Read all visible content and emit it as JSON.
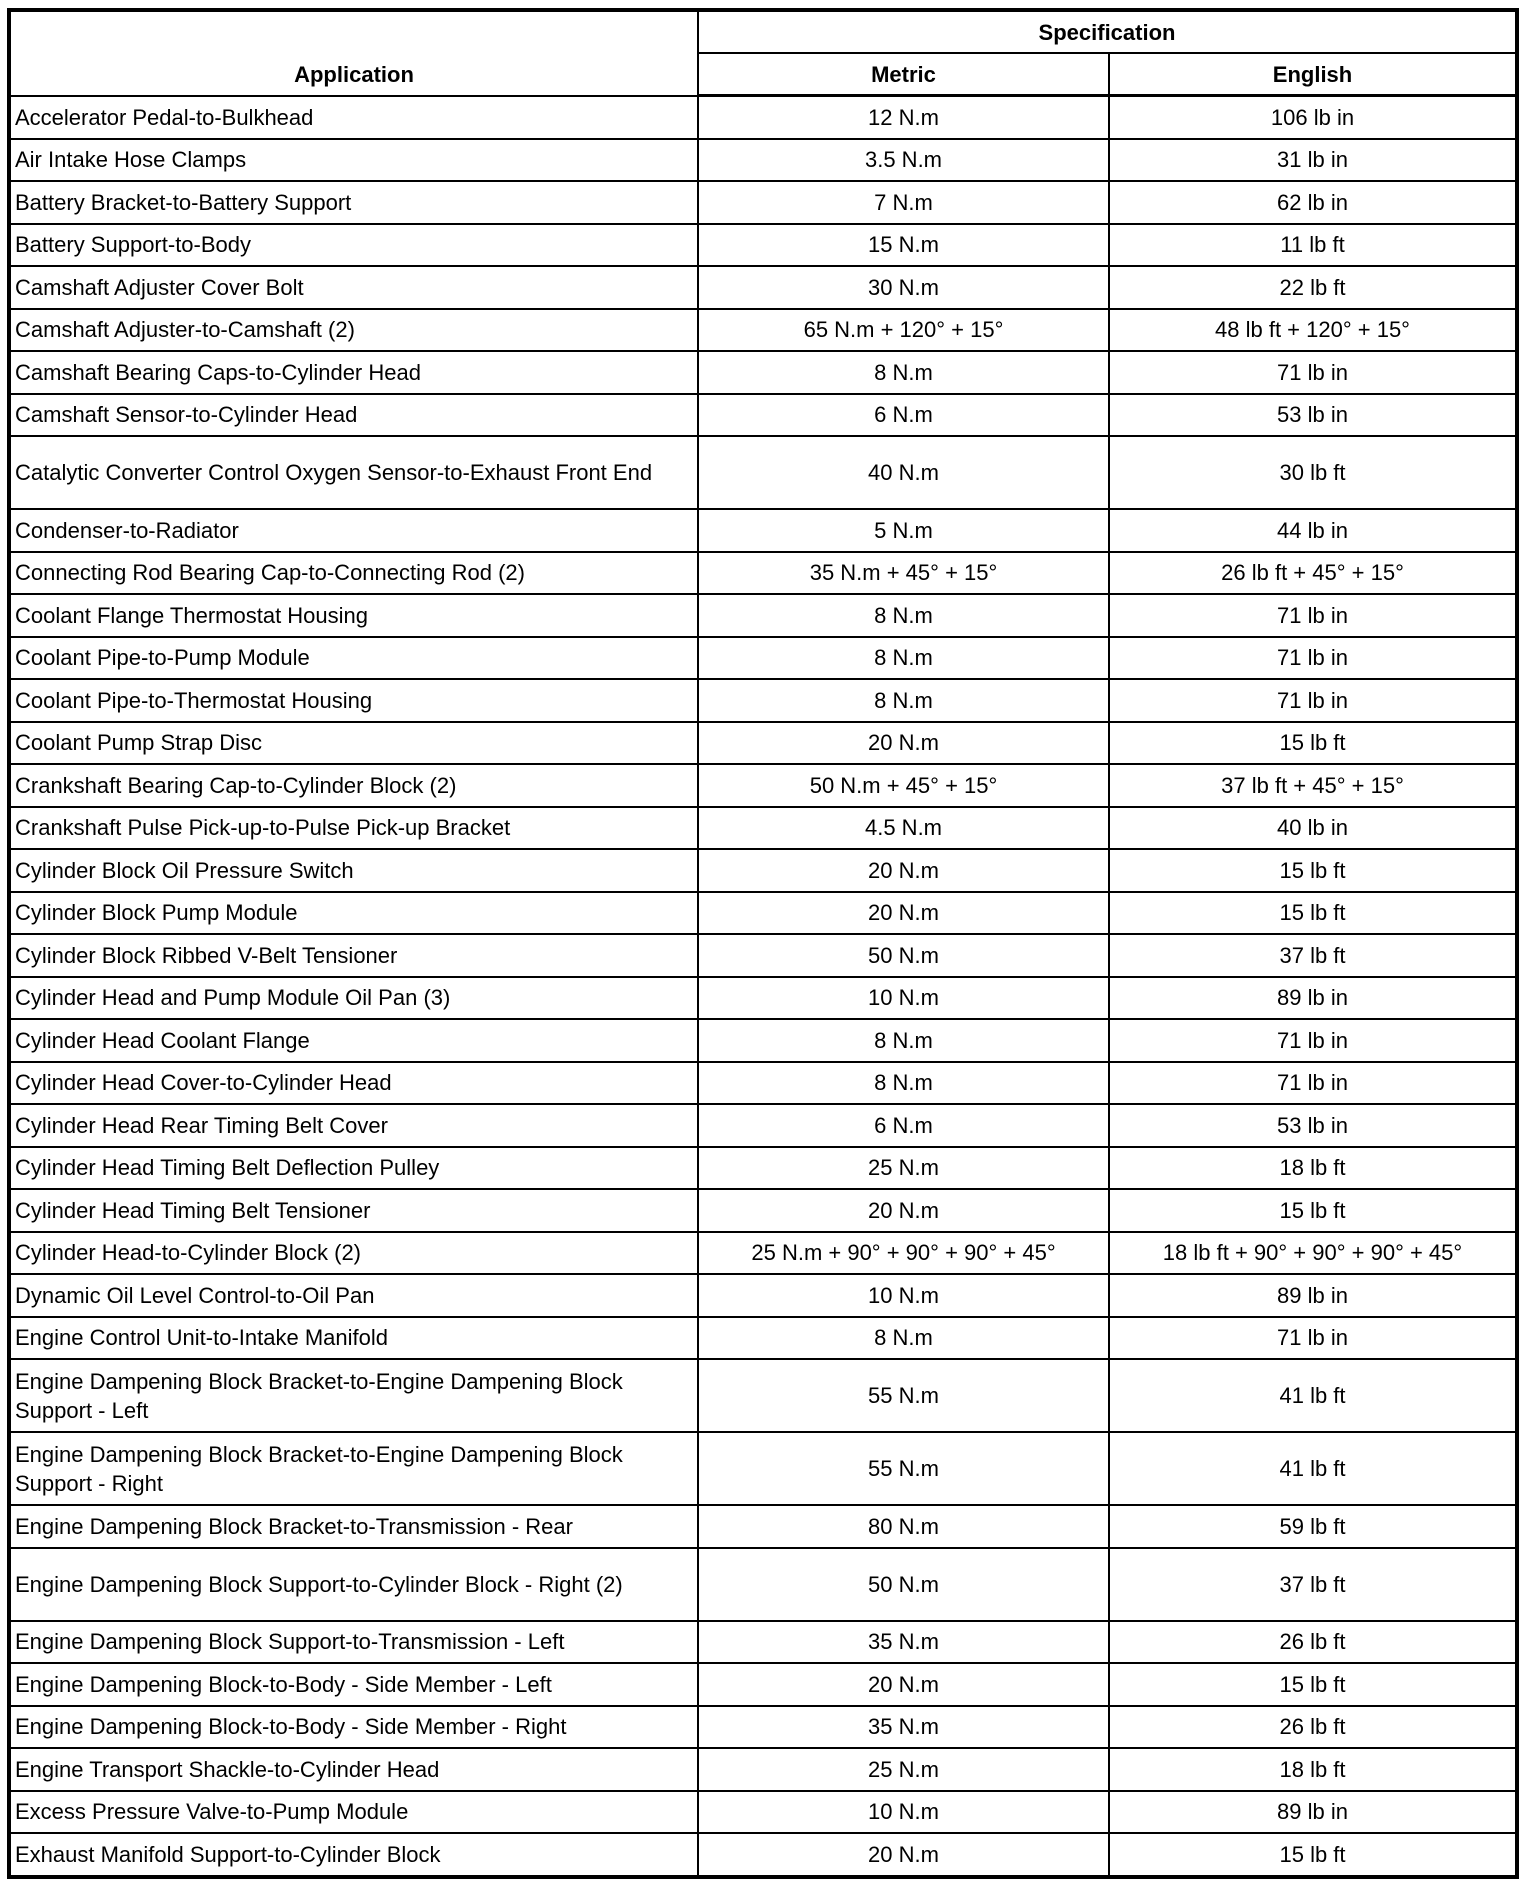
{
  "headers": {
    "application": "Application",
    "specification": "Specification",
    "metric": "Metric",
    "english": "English"
  },
  "rows": [
    {
      "app": "Accelerator Pedal-to-Bulkhead",
      "metric": "12 N.m",
      "english": "106 lb in"
    },
    {
      "app": "Air Intake Hose Clamps",
      "metric": "3.5 N.m",
      "english": "31 lb in"
    },
    {
      "app": "Battery Bracket-to-Battery Support",
      "metric": "7 N.m",
      "english": "62 lb in"
    },
    {
      "app": "Battery Support-to-Body",
      "metric": "15 N.m",
      "english": "11 lb ft"
    },
    {
      "app": "Camshaft Adjuster Cover Bolt",
      "metric": "30 N.m",
      "english": "22 lb ft"
    },
    {
      "app": "Camshaft Adjuster-to-Camshaft (2)",
      "metric": "65 N.m + 120° + 15°",
      "english": "48 lb ft + 120° + 15°"
    },
    {
      "app": "Camshaft Bearing Caps-to-Cylinder Head",
      "metric": "8 N.m",
      "english": "71 lb in"
    },
    {
      "app": "Camshaft Sensor-to-Cylinder Head",
      "metric": "6 N.m",
      "english": "53 lb in"
    },
    {
      "app": "Catalytic Converter Control Oxygen Sensor-to-Exhaust Front End",
      "metric": "40 N.m",
      "english": "30 lb ft",
      "double": true
    },
    {
      "app": "Condenser-to-Radiator",
      "metric": "5 N.m",
      "english": "44 lb in"
    },
    {
      "app": "Connecting Rod Bearing Cap-to-Connecting Rod (2)",
      "metric": "35 N.m + 45° + 15°",
      "english": "26 lb ft + 45° + 15°"
    },
    {
      "app": "Coolant Flange Thermostat Housing",
      "metric": "8 N.m",
      "english": "71 lb in"
    },
    {
      "app": "Coolant Pipe-to-Pump Module",
      "metric": "8 N.m",
      "english": "71 lb in"
    },
    {
      "app": "Coolant Pipe-to-Thermostat Housing",
      "metric": "8 N.m",
      "english": "71 lb in"
    },
    {
      "app": "Coolant Pump Strap Disc",
      "metric": "20 N.m",
      "english": "15 lb ft"
    },
    {
      "app": "Crankshaft Bearing Cap-to-Cylinder Block (2)",
      "metric": "50 N.m + 45° + 15°",
      "english": "37 lb ft + 45° + 15°"
    },
    {
      "app": "Crankshaft Pulse Pick-up-to-Pulse Pick-up Bracket",
      "metric": "4.5 N.m",
      "english": "40 lb in"
    },
    {
      "app": "Cylinder Block Oil Pressure Switch",
      "metric": "20 N.m",
      "english": "15 lb ft"
    },
    {
      "app": "Cylinder Block Pump Module",
      "metric": "20 N.m",
      "english": "15 lb ft"
    },
    {
      "app": "Cylinder Block Ribbed V-Belt Tensioner",
      "metric": "50 N.m",
      "english": "37 lb ft"
    },
    {
      "app": "Cylinder Head and Pump Module Oil Pan (3)",
      "metric": "10 N.m",
      "english": "89 lb in"
    },
    {
      "app": "Cylinder Head Coolant Flange",
      "metric": "8 N.m",
      "english": "71 lb in"
    },
    {
      "app": "Cylinder Head Cover-to-Cylinder Head",
      "metric": "8 N.m",
      "english": "71 lb in"
    },
    {
      "app": "Cylinder Head Rear Timing Belt Cover",
      "metric": "6 N.m",
      "english": "53 lb in"
    },
    {
      "app": "Cylinder Head Timing Belt Deflection Pulley",
      "metric": "25 N.m",
      "english": "18 lb ft"
    },
    {
      "app": "Cylinder Head Timing Belt Tensioner",
      "metric": "20 N.m",
      "english": "15 lb ft"
    },
    {
      "app": "Cylinder Head-to-Cylinder Block (2)",
      "metric": "25 N.m + 90° + 90° + 90° + 45°",
      "english": "18 lb ft + 90° + 90° + 90° + 45°"
    },
    {
      "app": "Dynamic Oil Level Control-to-Oil Pan",
      "metric": "10 N.m",
      "english": "89 lb in"
    },
    {
      "app": "Engine Control Unit-to-Intake Manifold",
      "metric": "8 N.m",
      "english": "71 lb in"
    },
    {
      "app": "Engine Dampening Block Bracket-to-Engine Dampening Block Support - Left",
      "metric": "55 N.m",
      "english": "41 lb ft",
      "double": true
    },
    {
      "app": "Engine Dampening Block Bracket-to-Engine Dampening Block Support - Right",
      "metric": "55 N.m",
      "english": "41 lb ft",
      "double": true
    },
    {
      "app": "Engine Dampening Block Bracket-to-Transmission - Rear",
      "metric": "80 N.m",
      "english": "59 lb ft"
    },
    {
      "app": "Engine Dampening Block Support-to-Cylinder Block - Right (2)",
      "metric": "50 N.m",
      "english": "37 lb ft",
      "double": true
    },
    {
      "app": "Engine Dampening Block Support-to-Transmission - Left",
      "metric": "35 N.m",
      "english": "26 lb ft"
    },
    {
      "app": "Engine Dampening Block-to-Body - Side Member - Left",
      "metric": "20 N.m",
      "english": "15 lb ft"
    },
    {
      "app": "Engine Dampening Block-to-Body - Side Member - Right",
      "metric": "35 N.m",
      "english": "26 lb ft"
    },
    {
      "app": "Engine Transport Shackle-to-Cylinder Head",
      "metric": "25 N.m",
      "english": "18 lb ft"
    },
    {
      "app": "Excess Pressure Valve-to-Pump Module",
      "metric": "10 N.m",
      "english": "89 lb in"
    },
    {
      "app": "Exhaust Manifold Support-to-Cylinder Block",
      "metric": "20 N.m",
      "english": "15 lb ft"
    }
  ]
}
